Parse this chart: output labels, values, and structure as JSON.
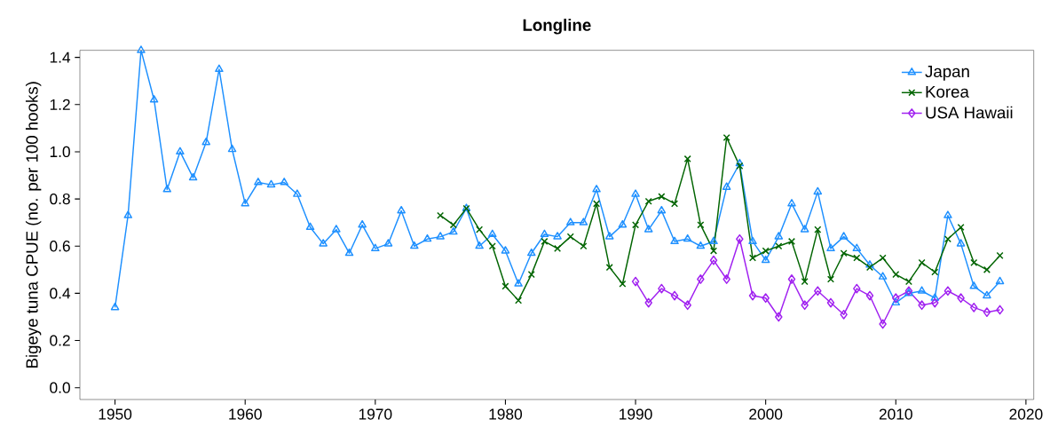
{
  "chart_data": {
    "type": "line",
    "title": "Longline",
    "ylabel": "Bigeye tuna CPUE (no. per 100 hooks)",
    "xlim": [
      1947.3,
      2020.6
    ],
    "ylim": [
      -0.05,
      1.43
    ],
    "xticks": [
      1950,
      1960,
      1970,
      1980,
      1990,
      2000,
      2010,
      2020
    ],
    "yticks": [
      {
        "value": 0,
        "label": "0.0"
      },
      0.2,
      0.4,
      0.6,
      0.8,
      {
        "value": 1,
        "label": "1.0"
      },
      1.2,
      1.4
    ],
    "legend": "top right",
    "grid": false,
    "line_style": "solid",
    "series": [
      {
        "name": "Japan",
        "color": "#1e90ff",
        "marker": "triangle",
        "x": [
          1950,
          1951,
          1952,
          1953,
          1954,
          1955,
          1956,
          1957,
          1958,
          1959,
          1960,
          1961,
          1962,
          1963,
          1964,
          1965,
          1966,
          1967,
          1968,
          1969,
          1970,
          1971,
          1972,
          1973,
          1974,
          1975,
          1976,
          1977,
          1978,
          1979,
          1980,
          1981,
          1982,
          1983,
          1984,
          1985,
          1986,
          1987,
          1988,
          1989,
          1990,
          1991,
          1992,
          1993,
          1994,
          1995,
          1996,
          1997,
          1998,
          1999,
          2000,
          2001,
          2002,
          2003,
          2004,
          2005,
          2006,
          2007,
          2008,
          2009,
          2010,
          2011,
          2012,
          2013,
          2014,
          2015,
          2016,
          2017,
          2018
        ],
        "values": [
          0.34,
          0.73,
          1.43,
          1.22,
          0.84,
          1.0,
          0.89,
          1.04,
          1.35,
          1.01,
          0.78,
          0.87,
          0.86,
          0.87,
          0.82,
          0.68,
          0.61,
          0.67,
          0.57,
          0.69,
          0.59,
          0.61,
          0.75,
          0.6,
          0.63,
          0.64,
          0.66,
          0.76,
          0.6,
          0.65,
          0.58,
          0.44,
          0.57,
          0.65,
          0.64,
          0.7,
          0.7,
          0.84,
          0.64,
          0.69,
          0.82,
          0.67,
          0.75,
          0.62,
          0.63,
          0.6,
          0.62,
          0.85,
          0.95,
          0.62,
          0.54,
          0.64,
          0.78,
          0.67,
          0.83,
          0.59,
          0.64,
          0.59,
          0.52,
          0.47,
          0.36,
          0.4,
          0.41,
          0.38,
          0.73,
          0.61,
          0.43,
          0.39,
          0.45
        ]
      },
      {
        "name": "Korea",
        "color": "#006400",
        "marker": "cross",
        "x": [
          1975,
          1976,
          1977,
          1978,
          1979,
          1980,
          1981,
          1982,
          1983,
          1984,
          1985,
          1986,
          1987,
          1988,
          1989,
          1990,
          1991,
          1992,
          1993,
          1994,
          1995,
          1996,
          1997,
          1998,
          1999,
          2000,
          2001,
          2002,
          2003,
          2004,
          2005,
          2006,
          2007,
          2008,
          2009,
          2010,
          2011,
          2012,
          2013,
          2014,
          2015,
          2016,
          2017,
          2018
        ],
        "values": [
          0.73,
          0.69,
          0.76,
          0.67,
          0.6,
          0.43,
          0.37,
          0.48,
          0.62,
          0.59,
          0.64,
          0.6,
          0.78,
          0.51,
          0.44,
          0.69,
          0.79,
          0.81,
          0.78,
          0.97,
          0.69,
          0.58,
          1.06,
          0.94,
          0.55,
          0.58,
          0.6,
          0.62,
          0.45,
          0.67,
          0.46,
          0.57,
          0.55,
          0.51,
          0.55,
          0.48,
          0.45,
          0.53,
          0.49,
          0.63,
          0.68,
          0.53,
          0.5,
          0.56
        ]
      },
      {
        "name": "USA Hawaii",
        "color": "#a020f0",
        "marker": "diamond",
        "x": [
          1990,
          1991,
          1992,
          1993,
          1994,
          1995,
          1996,
          1997,
          1998,
          1999,
          2000,
          2001,
          2002,
          2003,
          2004,
          2005,
          2006,
          2007,
          2008,
          2009,
          2010,
          2011,
          2012,
          2013,
          2014,
          2015,
          2016,
          2017,
          2018
        ],
        "values": [
          0.45,
          0.36,
          0.42,
          0.39,
          0.35,
          0.46,
          0.54,
          0.46,
          0.63,
          0.39,
          0.38,
          0.3,
          0.46,
          0.35,
          0.41,
          0.36,
          0.31,
          0.42,
          0.39,
          0.27,
          0.38,
          0.41,
          0.35,
          0.36,
          0.41,
          0.38,
          0.34,
          0.32,
          0.33
        ]
      }
    ]
  }
}
